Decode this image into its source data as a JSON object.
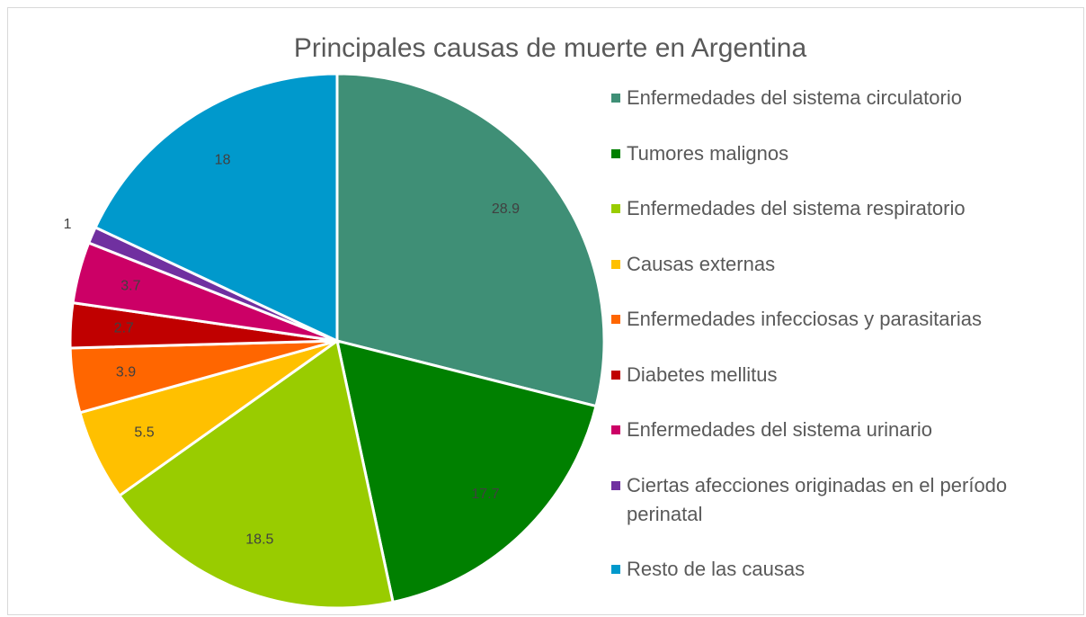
{
  "chart_data": {
    "type": "pie",
    "title": "Principales causas de muerte en Argentina",
    "categories": [
      "Enfermedades del sistema circulatorio",
      "Tumores malignos",
      "Enfermedades del sistema respiratorio",
      "Causas externas",
      "Enfermedades infecciosas y parasitarias",
      "Diabetes mellitus",
      "Enfermedades del sistema urinario",
      "Ciertas afecciones originadas en el período perinatal",
      "Resto de las causas"
    ],
    "values": [
      28.9,
      17.7,
      18.5,
      5.5,
      3.9,
      2.7,
      3.7,
      1,
      18
    ],
    "colors": [
      "#3f8f76",
      "#008000",
      "#99cc00",
      "#ffc000",
      "#ff6600",
      "#c00000",
      "#cc0066",
      "#7030a0",
      "#0099cc"
    ],
    "legend": "right"
  }
}
